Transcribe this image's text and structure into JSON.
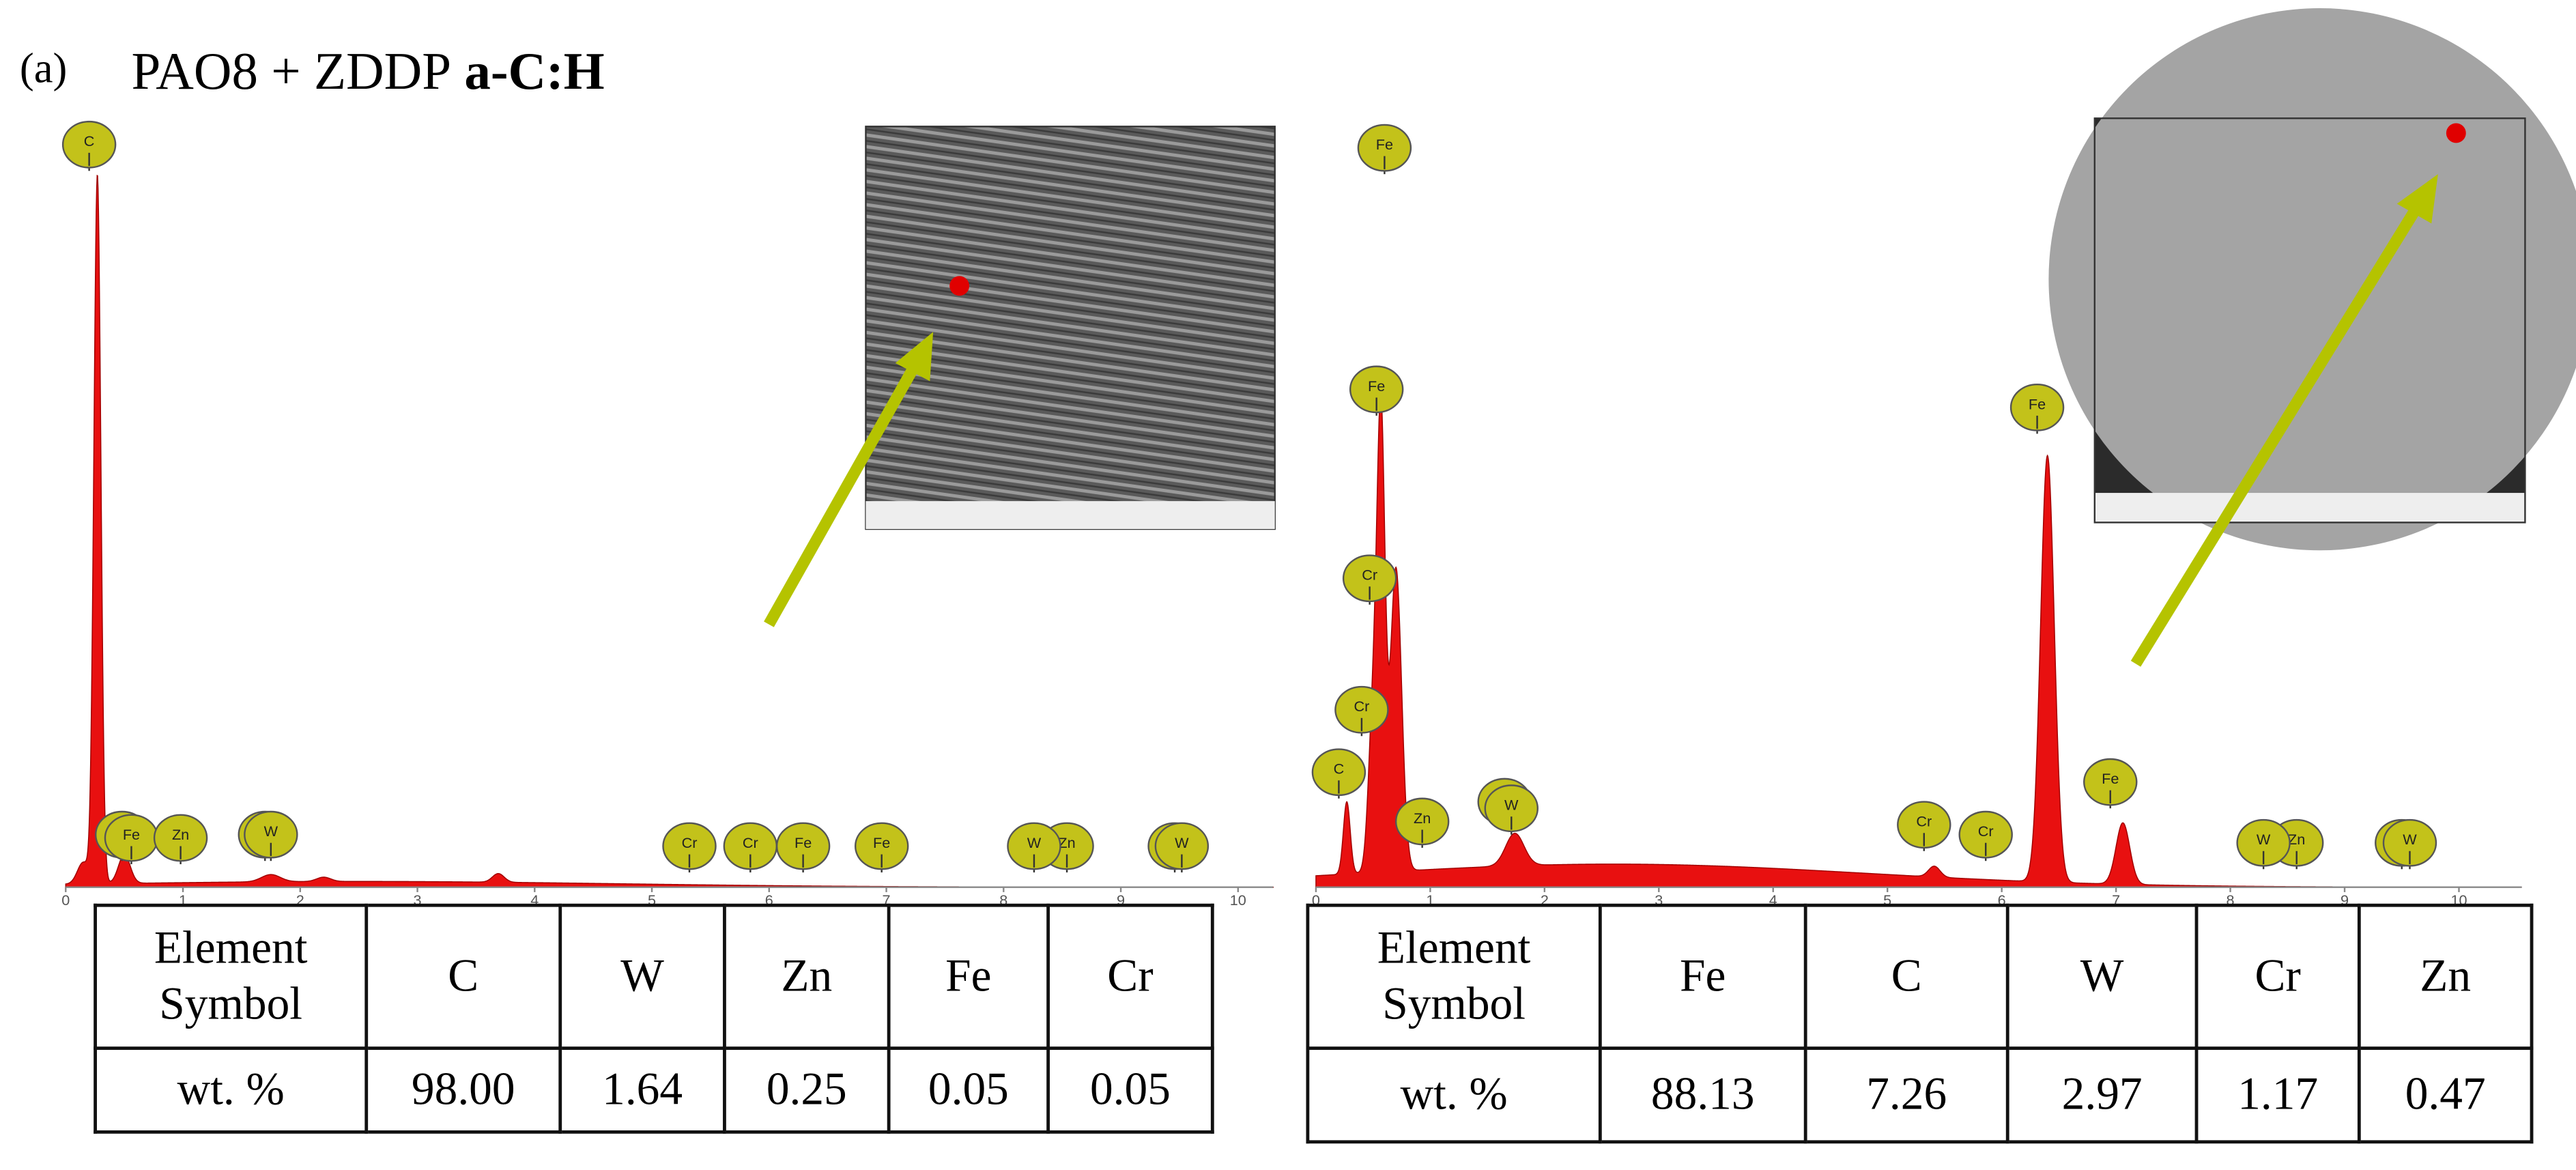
{
  "panel_label": "(a)",
  "title": {
    "text": "PAO8 + ZDDP",
    "bold": "a-C:H"
  },
  "panels": [
    {
      "spectrum": {
        "xlim": [
          0,
          10.3
        ],
        "ylim": [
          0,
          100
        ],
        "xticks": [
          0,
          1,
          2,
          3,
          4,
          5,
          6,
          7,
          8,
          9,
          10
        ],
        "peaks": [
          {
            "keV": 0.27,
            "intensity": 98,
            "width": 0.03
          },
          {
            "keV": 0.5,
            "intensity": 4,
            "width": 0.05
          },
          {
            "keV": 0.15,
            "intensity": 3,
            "width": 0.05
          },
          {
            "keV": 1.75,
            "intensity": 1,
            "width": 0.08
          },
          {
            "keV": 2.2,
            "intensity": 0.6,
            "width": 0.06
          },
          {
            "keV": 3.69,
            "intensity": 1.2,
            "width": 0.05
          },
          {
            "keV": 2.5,
            "intensity": 0.8,
            "width": 2.2
          }
        ]
      },
      "peak_labels": [
        {
          "element": "C",
          "keV": 0.2
        },
        {
          "element": "Fe",
          "keV": 0.48
        },
        {
          "element": "Fe",
          "keV": 0.56
        },
        {
          "element": "Zn",
          "keV": 0.98
        },
        {
          "element": "W",
          "keV": 1.7
        },
        {
          "element": "W",
          "keV": 1.75
        },
        {
          "element": "Cr",
          "keV": 5.32
        },
        {
          "element": "Cr",
          "keV": 5.84
        },
        {
          "element": "Fe",
          "keV": 6.29
        },
        {
          "element": "Fe",
          "keV": 6.96
        },
        {
          "element": "Zn",
          "keV": 8.54
        },
        {
          "element": "W",
          "keV": 8.26
        },
        {
          "element": "W",
          "keV": 9.46
        },
        {
          "element": "W",
          "keV": 9.52
        }
      ],
      "table": {
        "header": [
          "Element Symbol",
          "C",
          "W",
          "Zn",
          "Fe",
          "Cr"
        ],
        "row": [
          "wt. %",
          "98.00",
          "1.64",
          "0.25",
          "0.05",
          "0.05"
        ]
      }
    },
    {
      "spectrum": {
        "xlim": [
          0,
          10.55
        ],
        "ylim": [
          0,
          100
        ],
        "xticks": [
          0,
          1,
          2,
          3,
          4,
          5,
          6,
          7,
          8,
          9,
          10
        ],
        "peaks": [
          {
            "keV": 0.27,
            "intensity": 10,
            "width": 0.03
          },
          {
            "keV": 0.57,
            "intensity": 60,
            "width": 0.035
          },
          {
            "keV": 0.7,
            "intensity": 42,
            "width": 0.05
          },
          {
            "keV": 0.5,
            "intensity": 22,
            "width": 0.04
          },
          {
            "keV": 1.74,
            "intensity": 4.5,
            "width": 0.08
          },
          {
            "keV": 5.41,
            "intensity": 1.5,
            "width": 0.05
          },
          {
            "keV": 6.4,
            "intensity": 59,
            "width": 0.06
          },
          {
            "keV": 7.06,
            "intensity": 8.5,
            "width": 0.06
          },
          {
            "keV": 2.6,
            "intensity": 3.2,
            "width": 2.2
          }
        ]
      },
      "peak_labels": [
        {
          "element": "C",
          "keV": 0.2
        },
        {
          "element": "Cr",
          "keV": 0.4
        },
        {
          "element": "Cr",
          "keV": 0.47
        },
        {
          "element": "Fe",
          "keV": 0.53
        },
        {
          "element": "Fe",
          "keV": 0.6
        },
        {
          "element": "Zn",
          "keV": 0.93
        },
        {
          "element": "W",
          "keV": 1.65
        },
        {
          "element": "W",
          "keV": 1.71
        },
        {
          "element": "Cr",
          "keV": 5.32
        },
        {
          "element": "Cr",
          "keV": 5.86
        },
        {
          "element": "Fe",
          "keV": 6.31
        },
        {
          "element": "Fe",
          "keV": 6.95
        },
        {
          "element": "Zn",
          "keV": 8.58
        },
        {
          "element": "W",
          "keV": 8.29
        },
        {
          "element": "W",
          "keV": 9.5
        },
        {
          "element": "W",
          "keV": 9.57
        }
      ],
      "table": {
        "header": [
          "Element Symbol",
          "Fe",
          "C",
          "W",
          "Cr",
          "Zn"
        ],
        "row": [
          "wt. %",
          "88.13",
          "7.26",
          "2.97",
          "1.17",
          "0.47"
        ]
      }
    }
  ]
}
